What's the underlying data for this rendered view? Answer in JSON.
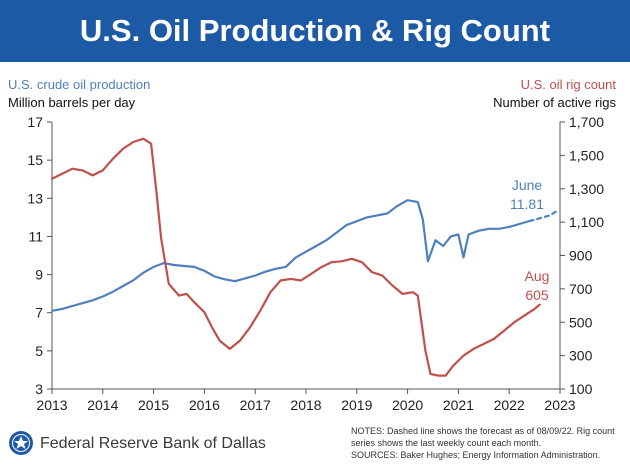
{
  "header": {
    "title": "U.S. Oil Production & Rig Count"
  },
  "chart_data": {
    "type": "line",
    "title": "U.S. Oil Production & Rig Count",
    "left_axis": {
      "label": "U.S. crude oil production",
      "unit": "Million barrels per day",
      "range": [
        3,
        17
      ],
      "ticks": [
        3,
        5,
        7,
        9,
        11,
        13,
        15,
        17
      ]
    },
    "right_axis": {
      "label": "U.S. oil rig count",
      "unit": "Number of active rigs",
      "range": [
        100,
        1700
      ],
      "ticks": [
        "100",
        "300",
        "500",
        "700",
        "900",
        "1,100",
        "1,300",
        "1,500",
        "1,700"
      ]
    },
    "x_axis": {
      "range": [
        2013,
        2023
      ],
      "ticks": [
        2013,
        2014,
        2015,
        2016,
        2017,
        2018,
        2019,
        2020,
        2021,
        2022,
        2023
      ]
    },
    "series": [
      {
        "name": "U.S. crude oil production",
        "axis": "left",
        "color": "#4f80bd",
        "points": [
          [
            2013.0,
            7.1
          ],
          [
            2013.2,
            7.2
          ],
          [
            2013.4,
            7.35
          ],
          [
            2013.6,
            7.5
          ],
          [
            2013.8,
            7.65
          ],
          [
            2014.0,
            7.85
          ],
          [
            2014.2,
            8.1
          ],
          [
            2014.4,
            8.4
          ],
          [
            2014.6,
            8.7
          ],
          [
            2014.8,
            9.1
          ],
          [
            2015.0,
            9.4
          ],
          [
            2015.2,
            9.6
          ],
          [
            2015.4,
            9.5
          ],
          [
            2015.6,
            9.45
          ],
          [
            2015.8,
            9.4
          ],
          [
            2016.0,
            9.2
          ],
          [
            2016.2,
            8.9
          ],
          [
            2016.4,
            8.75
          ],
          [
            2016.6,
            8.65
          ],
          [
            2016.8,
            8.8
          ],
          [
            2017.0,
            8.95
          ],
          [
            2017.2,
            9.15
          ],
          [
            2017.4,
            9.3
          ],
          [
            2017.6,
            9.4
          ],
          [
            2017.8,
            9.9
          ],
          [
            2018.0,
            10.2
          ],
          [
            2018.2,
            10.5
          ],
          [
            2018.4,
            10.8
          ],
          [
            2018.6,
            11.2
          ],
          [
            2018.8,
            11.6
          ],
          [
            2019.0,
            11.8
          ],
          [
            2019.2,
            12.0
          ],
          [
            2019.4,
            12.1
          ],
          [
            2019.6,
            12.2
          ],
          [
            2019.8,
            12.6
          ],
          [
            2020.0,
            12.9
          ],
          [
            2020.2,
            12.8
          ],
          [
            2020.3,
            11.9
          ],
          [
            2020.4,
            9.7
          ],
          [
            2020.55,
            10.8
          ],
          [
            2020.7,
            10.5
          ],
          [
            2020.85,
            11.0
          ],
          [
            2021.0,
            11.1
          ],
          [
            2021.1,
            9.9
          ],
          [
            2021.2,
            11.1
          ],
          [
            2021.4,
            11.3
          ],
          [
            2021.6,
            11.4
          ],
          [
            2021.8,
            11.4
          ],
          [
            2022.0,
            11.5
          ],
          [
            2022.2,
            11.65
          ],
          [
            2022.4,
            11.81
          ]
        ]
      },
      {
        "name": "Forecast",
        "axis": "left",
        "dashed": true,
        "color": "#4f80bd",
        "points": [
          [
            2022.4,
            11.81
          ],
          [
            2022.6,
            11.95
          ],
          [
            2022.8,
            12.1
          ],
          [
            2022.95,
            12.35
          ]
        ]
      },
      {
        "name": "U.S. oil rig count",
        "axis": "right",
        "color": "#c0504d",
        "points": [
          [
            2013.0,
            1360
          ],
          [
            2013.2,
            1390
          ],
          [
            2013.4,
            1420
          ],
          [
            2013.6,
            1410
          ],
          [
            2013.8,
            1380
          ],
          [
            2014.0,
            1410
          ],
          [
            2014.2,
            1480
          ],
          [
            2014.4,
            1540
          ],
          [
            2014.6,
            1580
          ],
          [
            2014.8,
            1600
          ],
          [
            2014.95,
            1570
          ],
          [
            2015.05,
            1300
          ],
          [
            2015.15,
            1000
          ],
          [
            2015.3,
            730
          ],
          [
            2015.5,
            660
          ],
          [
            2015.65,
            670
          ],
          [
            2015.8,
            620
          ],
          [
            2016.0,
            560
          ],
          [
            2016.15,
            470
          ],
          [
            2016.3,
            390
          ],
          [
            2016.5,
            340
          ],
          [
            2016.7,
            390
          ],
          [
            2016.9,
            470
          ],
          [
            2017.1,
            570
          ],
          [
            2017.3,
            680
          ],
          [
            2017.5,
            750
          ],
          [
            2017.7,
            760
          ],
          [
            2017.9,
            750
          ],
          [
            2018.1,
            790
          ],
          [
            2018.3,
            830
          ],
          [
            2018.5,
            860
          ],
          [
            2018.7,
            865
          ],
          [
            2018.9,
            880
          ],
          [
            2019.1,
            860
          ],
          [
            2019.3,
            800
          ],
          [
            2019.5,
            780
          ],
          [
            2019.7,
            720
          ],
          [
            2019.9,
            670
          ],
          [
            2020.1,
            680
          ],
          [
            2020.2,
            660
          ],
          [
            2020.35,
            330
          ],
          [
            2020.45,
            190
          ],
          [
            2020.6,
            180
          ],
          [
            2020.75,
            180
          ],
          [
            2020.9,
            240
          ],
          [
            2021.1,
            300
          ],
          [
            2021.3,
            340
          ],
          [
            2021.5,
            370
          ],
          [
            2021.7,
            400
          ],
          [
            2021.9,
            450
          ],
          [
            2022.1,
            500
          ],
          [
            2022.3,
            540
          ],
          [
            2022.5,
            580
          ],
          [
            2022.6,
            605
          ]
        ]
      }
    ],
    "annotations": [
      {
        "series": "U.S. crude oil production",
        "label": "June",
        "value": "11.81"
      },
      {
        "series": "U.S. oil rig count",
        "label": "Aug",
        "value": "605"
      }
    ],
    "grid": false
  },
  "footer": {
    "org": "Federal Reserve Bank of Dallas",
    "notes": "NOTES: Dashed line shows the forecast as of 08/09/22. Rig count series shows the last weekly count each month.",
    "sources": "SOURCES: Baker Hughes; Energy Information Administration."
  },
  "colors": {
    "banner": "#1d5aa6",
    "production": "#4f80bd",
    "rigs": "#c0504d"
  }
}
